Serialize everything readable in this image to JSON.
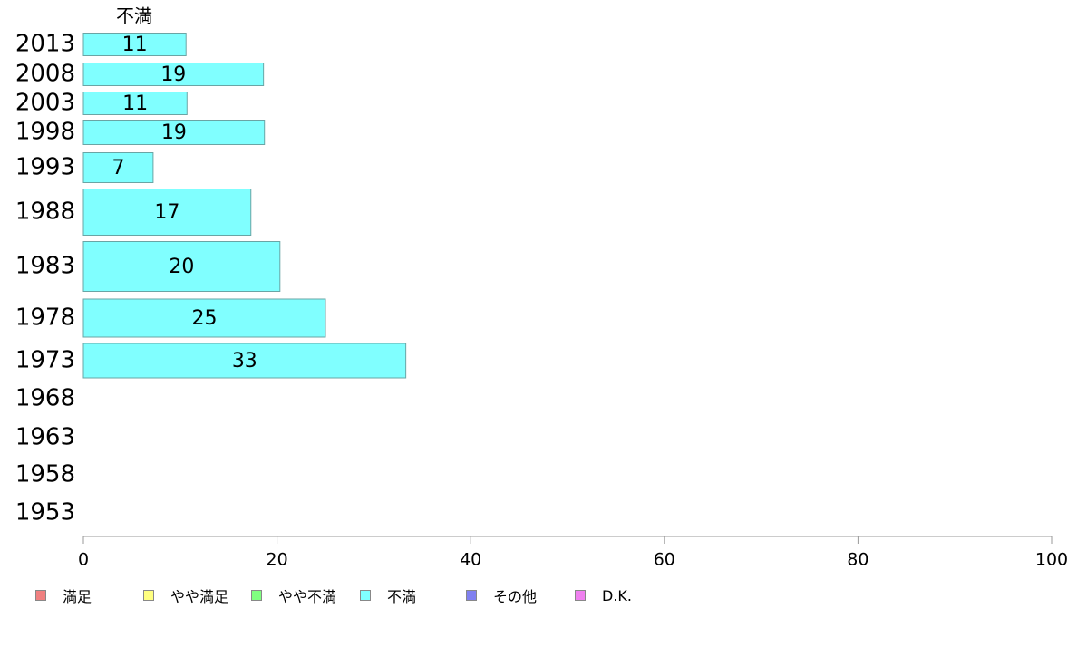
{
  "chart_data": {
    "type": "bar",
    "orientation": "horizontal",
    "stacked": true,
    "categories": [
      "2013",
      "2008",
      "2003",
      "1998",
      "1993",
      "1988",
      "1983",
      "1978",
      "1973",
      "1968",
      "1963",
      "1958",
      "1953"
    ],
    "series": [
      {
        "name": "満足",
        "color": "#f08080",
        "values": [
          null,
          null,
          null,
          null,
          null,
          null,
          null,
          null,
          null,
          null,
          null,
          null,
          null
        ]
      },
      {
        "name": "やや満足",
        "color": "#ffff80",
        "values": [
          null,
          null,
          null,
          null,
          null,
          null,
          null,
          null,
          null,
          null,
          null,
          null,
          null
        ]
      },
      {
        "name": "やや不満",
        "color": "#80ff80",
        "values": [
          null,
          null,
          null,
          null,
          null,
          null,
          null,
          null,
          null,
          null,
          null,
          null,
          null
        ]
      },
      {
        "name": "不満",
        "color": "#80ffff",
        "values": [
          11,
          19,
          11,
          19,
          7,
          17,
          20,
          25,
          33,
          null,
          null,
          null,
          null
        ]
      },
      {
        "name": "その他",
        "color": "#8080f0",
        "values": [
          null,
          null,
          null,
          null,
          null,
          null,
          null,
          null,
          null,
          null,
          null,
          null,
          null
        ]
      },
      {
        "name": "D.K.",
        "color": "#f080f0",
        "values": [
          null,
          null,
          null,
          null,
          null,
          null,
          null,
          null,
          null,
          null,
          null,
          null,
          null
        ]
      }
    ],
    "exact_bar_values": [
      10.6,
      18.6,
      10.7,
      18.7,
      7.2,
      17.3,
      20.3,
      25.0,
      33.3
    ],
    "data_labels": [
      "11",
      "19",
      "11",
      "19",
      "7",
      "17",
      "20",
      "25",
      "33"
    ],
    "top_label": "不満",
    "xlim": [
      0,
      100
    ],
    "xticks": [
      0,
      20,
      40,
      60,
      80,
      100
    ],
    "grid": false,
    "legend_position": "bottom"
  }
}
